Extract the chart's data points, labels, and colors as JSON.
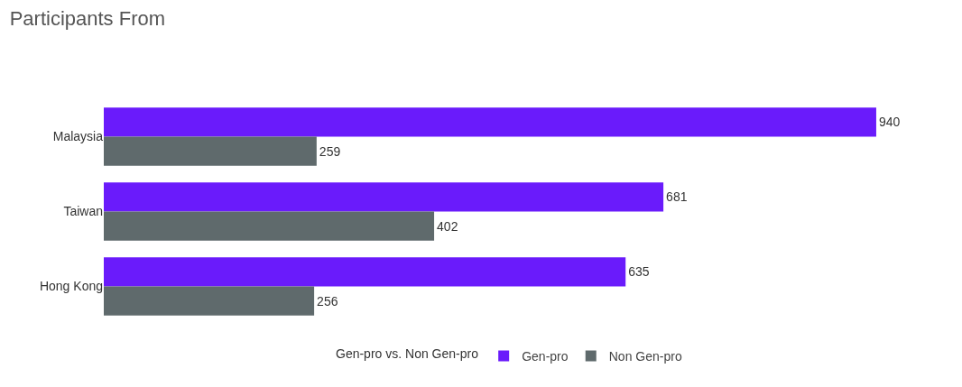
{
  "chart_data": {
    "type": "bar",
    "orientation": "horizontal",
    "title": "Participants From",
    "legend_title": "Gen-pro vs. Non Gen-pro",
    "legend": "bottom",
    "data_labels": true,
    "grid": false,
    "tick_labels": "y",
    "categories": [
      "Malaysia",
      "Taiwan",
      "Hong Kong"
    ],
    "series": [
      {
        "name": "Gen-pro",
        "color": "#6a1bfb",
        "values": [
          940,
          681,
          635
        ]
      },
      {
        "name": "Non Gen-pro",
        "color": "#5f6a6c",
        "values": [
          259,
          402,
          256
        ]
      }
    ]
  }
}
